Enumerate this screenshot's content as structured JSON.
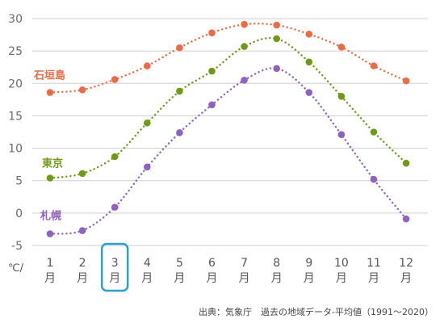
{
  "chart_data": {
    "type": "line",
    "categories": [
      "1",
      "2",
      "3",
      "4",
      "5",
      "6",
      "7",
      "8",
      "9",
      "10",
      "11",
      "12"
    ],
    "month_suffix": "月",
    "y_unit": "℃/",
    "ylim": [
      -5,
      30
    ],
    "yticks": [
      -5,
      0,
      5,
      10,
      15,
      20,
      25,
      30
    ],
    "grid": true,
    "highlighted_category": "3",
    "highlight_color": "#2a9fd6",
    "series": [
      {
        "name": "石垣島",
        "color": "#ec6b46",
        "values": [
          18.6,
          19.0,
          20.6,
          22.7,
          25.5,
          27.8,
          29.1,
          29.0,
          27.6,
          25.6,
          22.7,
          20.4
        ]
      },
      {
        "name": "東京",
        "color": "#6d9a17",
        "values": [
          5.4,
          6.1,
          8.7,
          13.9,
          18.8,
          21.9,
          25.7,
          26.9,
          23.3,
          18.0,
          12.5,
          7.7
        ]
      },
      {
        "name": "札幌",
        "color": "#8f62c0",
        "values": [
          -3.2,
          -2.7,
          0.9,
          7.1,
          12.4,
          16.7,
          20.5,
          22.3,
          18.6,
          12.1,
          5.2,
          -0.9
        ]
      }
    ],
    "source": "出典：気象庁　過去の地域データ-平均値（1991～2020）"
  }
}
